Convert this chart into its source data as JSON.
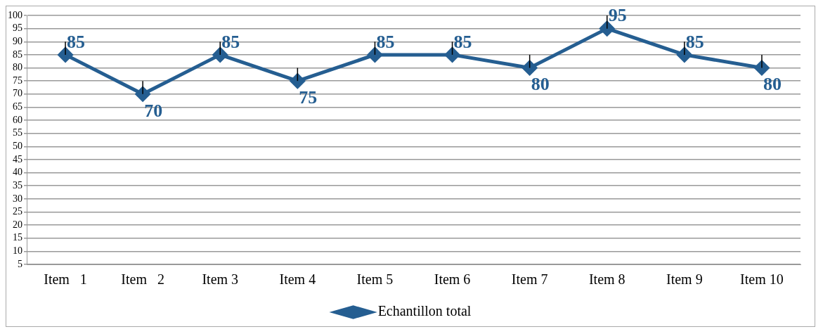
{
  "chart_data": {
    "type": "line",
    "categories": [
      "Item   1",
      "Item   2",
      "Item 3",
      "Item 4",
      "Item 5",
      "Item 6",
      "Item 7",
      "Item 8",
      "Item 9",
      "Item 10"
    ],
    "series": [
      {
        "name": "Echantillon total",
        "color": "#255e91",
        "values": [
          85,
          70,
          85,
          75,
          85,
          85,
          80,
          95,
          85,
          80
        ],
        "errors": [
          [
            85,
            90
          ],
          [
            70,
            75
          ],
          [
            85,
            90
          ],
          [
            75,
            80
          ],
          [
            85,
            90
          ],
          [
            85,
            90
          ],
          [
            80,
            85
          ],
          [
            95,
            100
          ],
          [
            85,
            90
          ],
          [
            80,
            85
          ]
        ]
      }
    ],
    "ylim": [
      5,
      100
    ],
    "yticks": [
      5,
      10,
      15,
      20,
      25,
      30,
      35,
      40,
      45,
      50,
      55,
      60,
      65,
      70,
      75,
      80,
      85,
      90,
      95,
      100
    ],
    "grid": "y",
    "legend": "bottom",
    "marker": "diamond",
    "line_style": "solid",
    "data_labels": true
  }
}
